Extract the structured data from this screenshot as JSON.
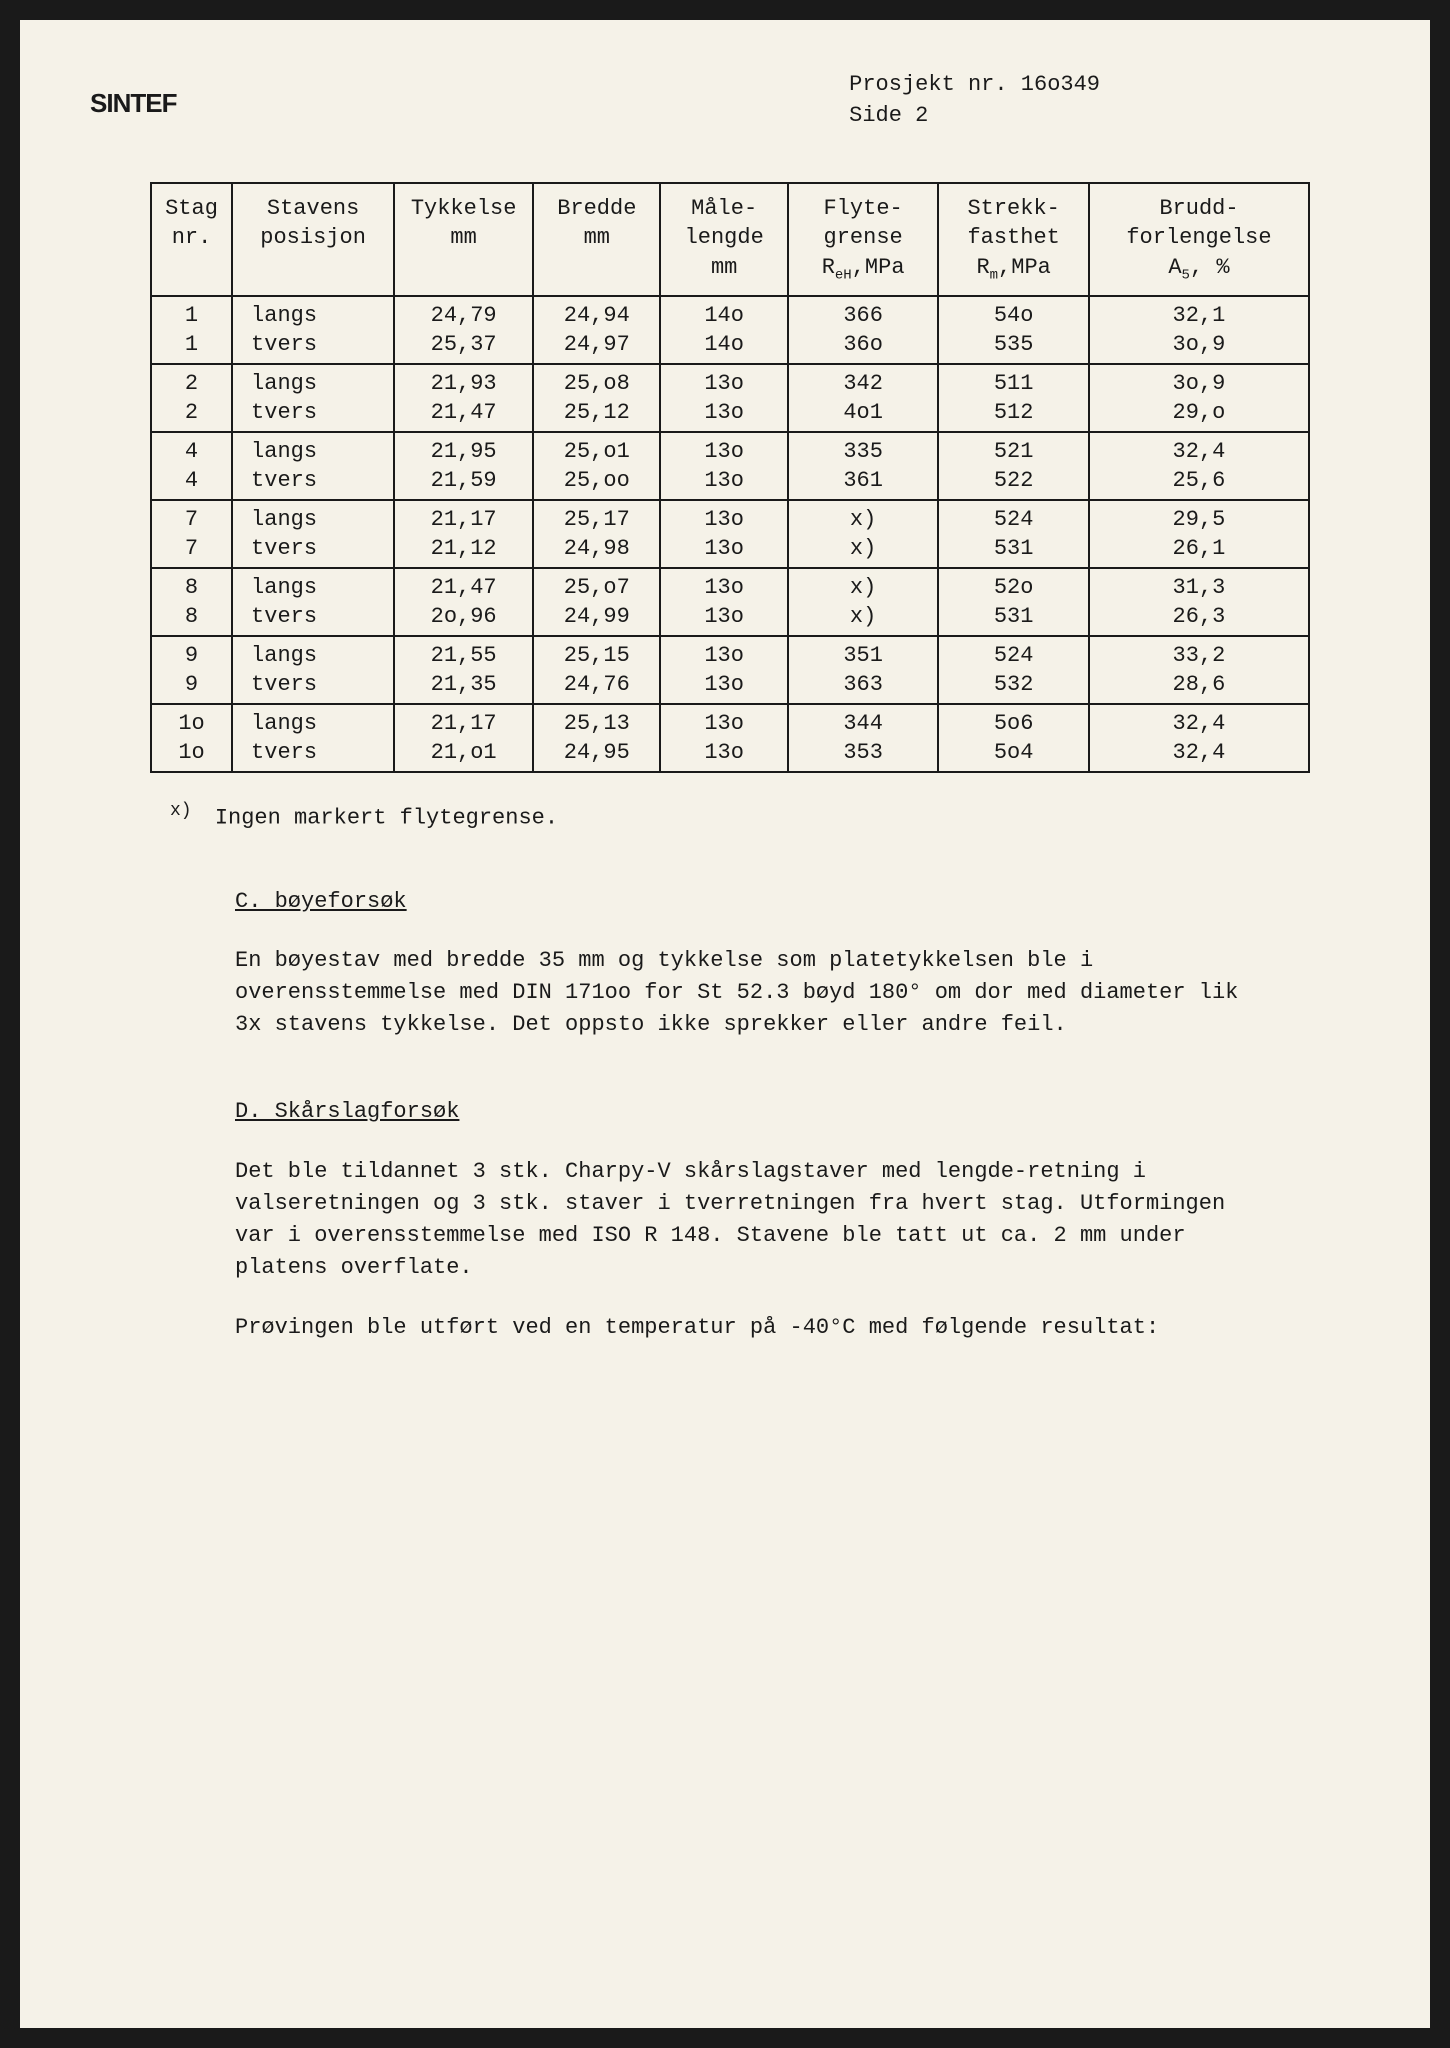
{
  "header": {
    "logo": "SINTEF",
    "project_label": "Prosjekt nr. 16o349",
    "page_label": "Side 2"
  },
  "table": {
    "columns": [
      "Stag nr.",
      "Stavens posisjon",
      "Tykkelse mm",
      "Bredde mm",
      "Måle-lengde mm",
      "Flyte-grense ReH,MPa",
      "Strekk-fasthet Rm,MPa",
      "Brudd-forlengelse A5, %"
    ],
    "header_html": {
      "c0": "Stag<br>nr.",
      "c1": "Stavens<br>posisjon",
      "c2": "Tykkelse<br>mm",
      "c3": "Bredde<br>mm",
      "c4": "Måle-<br>lengde<br>mm",
      "c5": "Flyte-<br>grense<br>R<span class='sub'>eH</span>,MPa",
      "c6": "Strekk-<br>fasthet<br>R<span class='sub'>m</span>,MPa",
      "c7": "Brudd-<br>forlengelse<br>A<span class='sub'>5</span>, %"
    },
    "groups": [
      {
        "a": [
          "1",
          "langs",
          "24,79",
          "24,94",
          "14o",
          "366",
          "54o",
          "32,1"
        ],
        "b": [
          "1",
          "tvers",
          "25,37",
          "24,97",
          "14o",
          "36o",
          "535",
          "3o,9"
        ]
      },
      {
        "a": [
          "2",
          "langs",
          "21,93",
          "25,o8",
          "13o",
          "342",
          "511",
          "3o,9"
        ],
        "b": [
          "2",
          "tvers",
          "21,47",
          "25,12",
          "13o",
          "4o1",
          "512",
          "29,o"
        ]
      },
      {
        "a": [
          "4",
          "langs",
          "21,95",
          "25,o1",
          "13o",
          "335",
          "521",
          "32,4"
        ],
        "b": [
          "4",
          "tvers",
          "21,59",
          "25,oo",
          "13o",
          "361",
          "522",
          "25,6"
        ]
      },
      {
        "a": [
          "7",
          "langs",
          "21,17",
          "25,17",
          "13o",
          "x)",
          "524",
          "29,5"
        ],
        "b": [
          "7",
          "tvers",
          "21,12",
          "24,98",
          "13o",
          "x)",
          "531",
          "26,1"
        ]
      },
      {
        "a": [
          "8",
          "langs",
          "21,47",
          "25,o7",
          "13o",
          "x)",
          "52o",
          "31,3"
        ],
        "b": [
          "8",
          "tvers",
          "2o,96",
          "24,99",
          "13o",
          "x)",
          "531",
          "26,3"
        ]
      },
      {
        "a": [
          "9",
          "langs",
          "21,55",
          "25,15",
          "13o",
          "351",
          "524",
          "33,2"
        ],
        "b": [
          "9",
          "tvers",
          "21,35",
          "24,76",
          "13o",
          "363",
          "532",
          "28,6"
        ]
      },
      {
        "a": [
          "1o",
          "langs",
          "21,17",
          "25,13",
          "13o",
          "344",
          "5o6",
          "32,4"
        ],
        "b": [
          "1o",
          "tvers",
          "21,o1",
          "24,95",
          "13o",
          "353",
          "5o4",
          "32,4"
        ]
      }
    ],
    "col_widths_pct": [
      7,
      14,
      12,
      11,
      11,
      13,
      13,
      19
    ],
    "border_color": "#1a1a1a",
    "text_color": "#1a1a1a",
    "background_color": "#f5f2e8",
    "font_size_pt": 16
  },
  "footnote": {
    "marker": "x)",
    "text": "Ingen markert flytegrense."
  },
  "sections": [
    {
      "title": "C.  bøyeforsøk",
      "paragraphs": [
        "En bøyestav med bredde 35 mm og tykkelse som platetykkelsen ble i overensstemmelse med DIN 171oo for St 52.3 bøyd 180° om dor med diameter lik 3x stavens tykkelse.  Det oppsto ikke sprekker eller andre feil."
      ]
    },
    {
      "title": "D.  Skårslagforsøk",
      "paragraphs": [
        "Det ble tildannet 3 stk. Charpy-V skårslagstaver med lengde-retning i valseretningen og 3 stk. staver i tverretningen fra hvert stag.  Utformingen var i overensstemmelse med ISO R 148. Stavene ble tatt ut ca. 2 mm under platens overflate.",
        "Prøvingen ble utført ved en temperatur på -40°C med følgende resultat:"
      ]
    }
  ],
  "layout": {
    "page_bg": "#f5f2e8",
    "frame_bg": "#1a1a1a",
    "font_family": "Courier New"
  }
}
